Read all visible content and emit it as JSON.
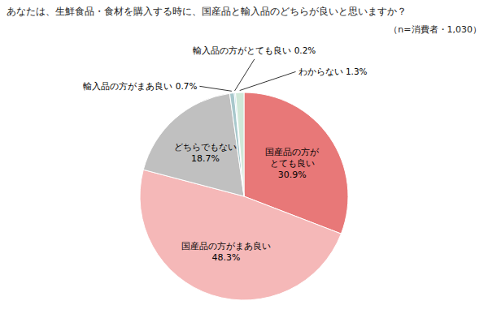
{
  "chart_data": {
    "type": "pie",
    "title": "あなたは、生鮮食品・食材を購入する時に、国産品と輸入品のどちらが良いと思いますか？",
    "subtitle": "（n=消費者・1,030）",
    "values": [
      30.9,
      48.3,
      18.7,
      0.7,
      0.2,
      1.3
    ],
    "value_labels": [
      "国産品の方が\nとても良い\n30.9%",
      "国産品の方がまあ良い\n48.3%",
      "どちらでもない\n18.7%",
      "輸入品の方がまあ良い 0.7%",
      "輸入品の方がとても良い 0.2%",
      "わからない 1.3%"
    ],
    "colors": [
      "#e87878",
      "#f5b8b8",
      "#c0c0c0",
      "#a8c8cc",
      "#add8e6",
      "#d0e8d8"
    ],
    "data_labels": true
  }
}
